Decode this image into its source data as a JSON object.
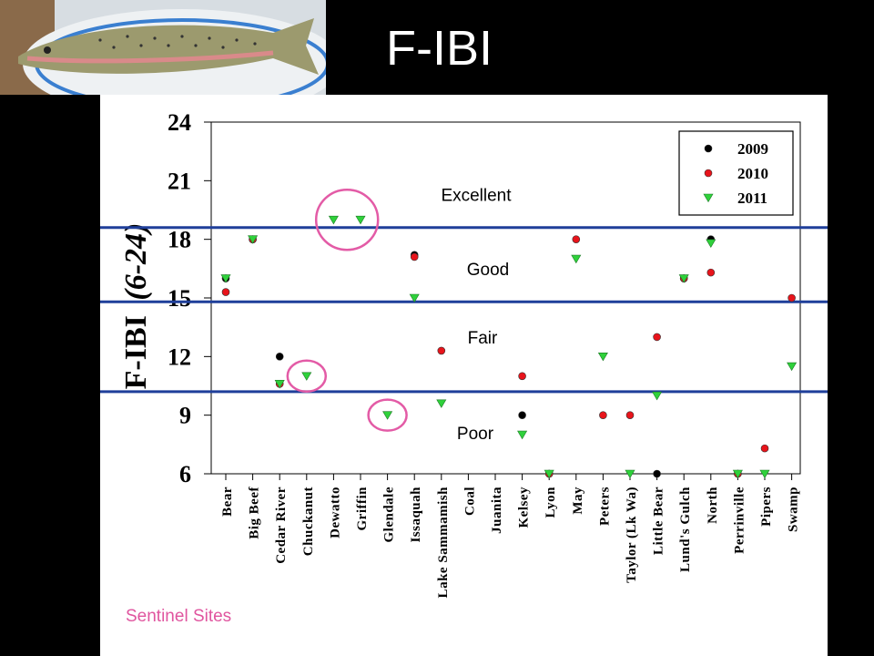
{
  "slide": {
    "title": "F-IBI",
    "footnote": "Sentinel Sites"
  },
  "chart_data": {
    "type": "scatter",
    "title": "",
    "ylabel_main": "F-IBI",
    "ylabel_range": "(6-24)",
    "ylim": [
      6,
      24
    ],
    "yticks": [
      6,
      9,
      12,
      15,
      18,
      21,
      24
    ],
    "categories": [
      "Bear",
      "Big Beef",
      "Cedar River",
      "Chuckanut",
      "Dewatto",
      "Griffin",
      "Glendale",
      "Issaquah",
      "Lake Sammamish",
      "Coal",
      "Juanita",
      "Kelsey",
      "Lyon",
      "May",
      "Peters",
      "Taylor (Lk Wa)",
      "Little Bear",
      "Lund's Gulch",
      "North",
      "Perrinville",
      "Pipers",
      "Swamp"
    ],
    "series": [
      {
        "name": "2009",
        "color": "#000000",
        "marker": "circle",
        "values": [
          16,
          18,
          12,
          null,
          null,
          null,
          null,
          17.2,
          null,
          null,
          null,
          9,
          6,
          null,
          null,
          null,
          6,
          16,
          18,
          6,
          null,
          null
        ]
      },
      {
        "name": "2010",
        "color": "#e8141b",
        "marker": "circle",
        "values": [
          15.3,
          18,
          10.6,
          null,
          null,
          null,
          null,
          17.1,
          12.3,
          null,
          null,
          11,
          6,
          18,
          9,
          9,
          13,
          16,
          16.3,
          6,
          7.3,
          15
        ]
      },
      {
        "name": "2011",
        "color": "#2fd13b",
        "marker": "triangle-down",
        "values": [
          16,
          18,
          10.6,
          11,
          19,
          19,
          9,
          15,
          9.6,
          null,
          null,
          8,
          6,
          17,
          12,
          6,
          10,
          16,
          17.8,
          6,
          6,
          11.5
        ]
      }
    ],
    "thresholds": [
      18.6,
      14.8,
      10.2
    ],
    "zones": [
      {
        "label": "Excellent",
        "y": 20.3
      },
      {
        "label": "Good",
        "y": 16.5
      },
      {
        "label": "Fair",
        "y": 13
      },
      {
        "label": "Poor",
        "y": 8.1
      }
    ],
    "highlights": [
      {
        "from": "Dewatto",
        "to": "Griffin",
        "y": 19
      },
      {
        "from": "Chuckanut",
        "to": "Chuckanut",
        "y": 11
      },
      {
        "from": "Glendale",
        "to": "Glendale",
        "y": 9
      }
    ],
    "legend_position": "top-right",
    "colors": {
      "threshold": "#1f3f9a",
      "highlight": "#e35ba6"
    }
  }
}
